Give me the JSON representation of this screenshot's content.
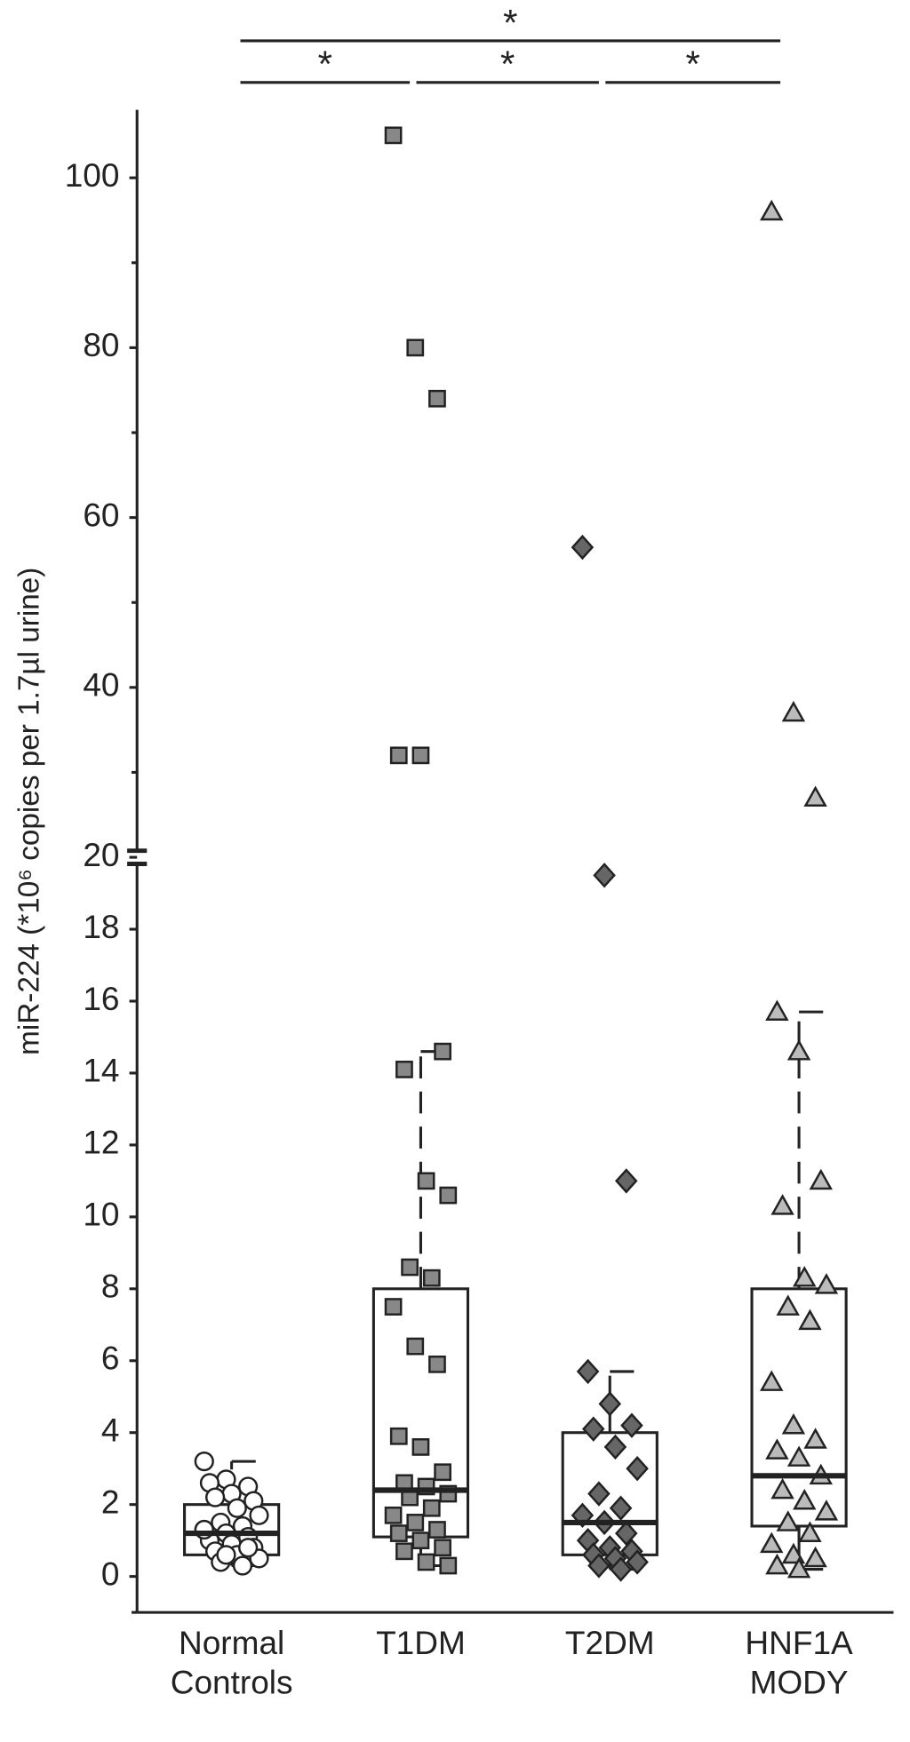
{
  "chart_data": {
    "type": "box",
    "y_label": "miR-224 (*10⁶ copies per 1.7µl urine)",
    "ylim": [
      -1,
      108
    ],
    "axis_break": 20,
    "yticks": [
      0,
      2,
      4,
      6,
      8,
      10,
      12,
      14,
      16,
      18,
      20,
      40,
      60,
      80,
      100
    ],
    "minor_yticks": [
      -1,
      30,
      50,
      70,
      90
    ],
    "groups": [
      {
        "name": "Normal Controls",
        "marker": "circle",
        "color": "#ffffff",
        "points": [
          3.2,
          2.7,
          2.5,
          2.6,
          2.3,
          2.1,
          2.2,
          1.9,
          1.7,
          1.5,
          1.4,
          1.3,
          1.2,
          1.1,
          1.0,
          0.9,
          0.8,
          0.7,
          0.6,
          0.5,
          0.4,
          0.3,
          1.3,
          0.6,
          0.8
        ],
        "whisker_low": 0.3,
        "q1": 0.6,
        "median": 1.2,
        "q3": 2.0,
        "whisker_high": 3.2
      },
      {
        "name": "T1DM",
        "marker": "square",
        "color": "#888888",
        "points": [
          105,
          80,
          74,
          32,
          32,
          14.6,
          14.1,
          11.0,
          10.6,
          8.6,
          8.3,
          7.5,
          6.4,
          5.9,
          3.9,
          3.6,
          2.9,
          2.6,
          2.5,
          2.3,
          2.2,
          1.9,
          1.7,
          1.5,
          1.3,
          1.2,
          1.0,
          0.8,
          0.7,
          0.4,
          0.3
        ],
        "whisker_low": 0.3,
        "q1": 1.1,
        "median": 2.4,
        "q3": 8.0,
        "whisker_high": 14.6
      },
      {
        "name": "T2DM",
        "marker": "diamond",
        "color": "#666666",
        "points": [
          56.5,
          19.5,
          11.0,
          5.7,
          4.8,
          4.2,
          4.1,
          3.6,
          3.0,
          2.3,
          1.9,
          1.7,
          1.5,
          1.2,
          1.0,
          0.8,
          0.7,
          0.6,
          0.5,
          0.4,
          0.3,
          0.2
        ],
        "whisker_low": 0.2,
        "q1": 0.6,
        "median": 1.5,
        "q3": 4.0,
        "whisker_high": 5.7
      },
      {
        "name": "HNF1A MODY",
        "marker": "triangle",
        "color": "#bbbbbb",
        "points": [
          96,
          37,
          27,
          15.7,
          14.6,
          11.0,
          10.3,
          8.3,
          8.1,
          7.5,
          7.1,
          5.4,
          4.2,
          3.8,
          3.5,
          3.3,
          2.8,
          2.4,
          2.1,
          1.8,
          1.5,
          1.2,
          0.9,
          0.6,
          0.5,
          0.3,
          0.2
        ],
        "whisker_low": 0.2,
        "q1": 1.4,
        "median": 2.8,
        "q3": 8.0,
        "whisker_high": 15.7
      }
    ],
    "significance": [
      {
        "from": 0,
        "to": 3,
        "label": "*"
      },
      {
        "from": 0,
        "to": 1,
        "label": "*"
      },
      {
        "from": 1,
        "to": 2,
        "label": "*"
      },
      {
        "from": 2,
        "to": 3,
        "label": "*"
      }
    ]
  }
}
